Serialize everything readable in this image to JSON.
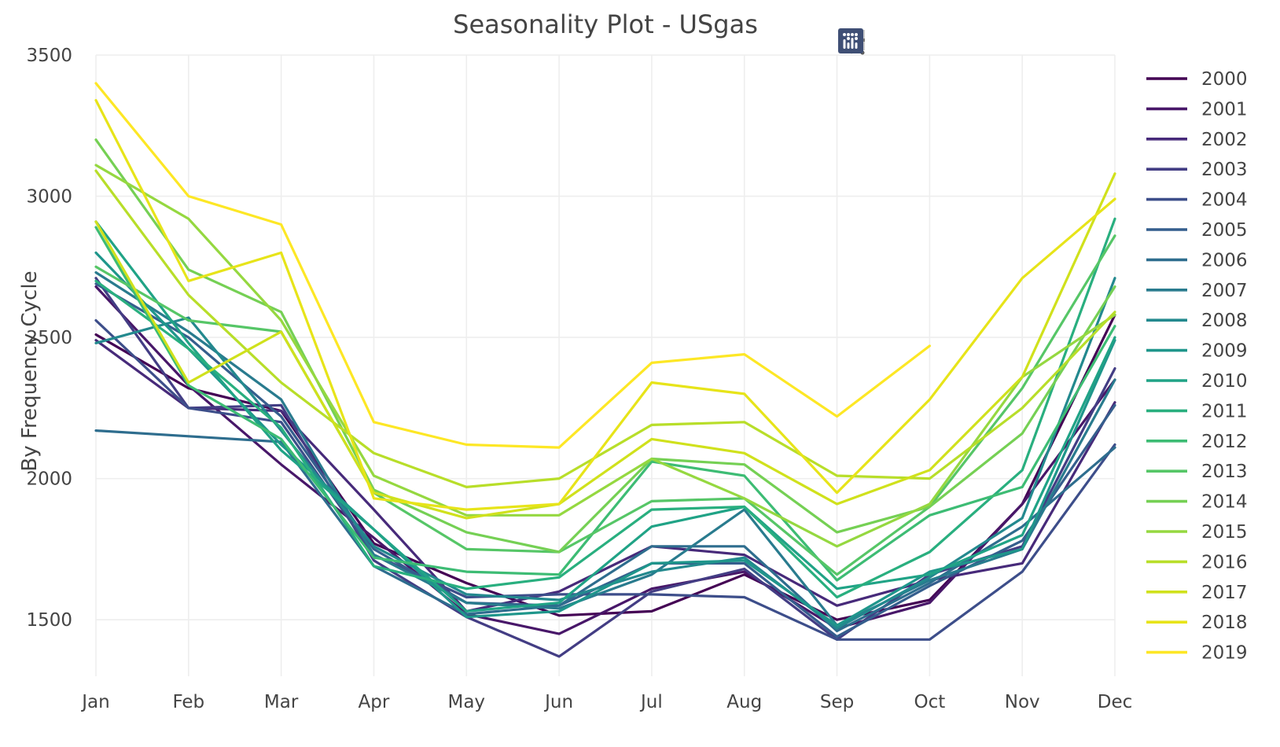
{
  "chart_data": {
    "type": "line",
    "title": "Seasonality Plot - USgas",
    "ylabel": "By Frequency Cycle",
    "xlabel": "",
    "categories": [
      "Jan",
      "Feb",
      "Mar",
      "Apr",
      "May",
      "Jun",
      "Jul",
      "Aug",
      "Sep",
      "Oct",
      "Nov",
      "Dec"
    ],
    "ylim": [
      1300,
      3500
    ],
    "yticks": [
      1500,
      2000,
      2500,
      3000,
      3500
    ],
    "grid": true,
    "legend_position": "right",
    "series": [
      {
        "name": "2000",
        "color": "#440154",
        "values": [
          2510,
          2320,
          2240,
          1770,
          1630,
          1515,
          1530,
          1660,
          1500,
          1570,
          1910,
          2580
        ]
      },
      {
        "name": "2001",
        "color": "#481769",
        "values": [
          2680,
          2330,
          2050,
          1790,
          1520,
          1450,
          1610,
          1670,
          1470,
          1560,
          1910,
          2350
        ]
      },
      {
        "name": "2002",
        "color": "#472a7a",
        "values": [
          2490,
          2250,
          2240,
          1890,
          1530,
          1600,
          1760,
          1730,
          1550,
          1640,
          1700,
          2270
        ]
      },
      {
        "name": "2003",
        "color": "#433d84",
        "values": [
          2710,
          2250,
          2260,
          1710,
          1510,
          1370,
          1600,
          1680,
          1430,
          1660,
          1760,
          2390
        ]
      },
      {
        "name": "2004",
        "color": "#3d4e8a",
        "values": [
          2560,
          2250,
          2200,
          1730,
          1580,
          1590,
          1590,
          1580,
          1430,
          1430,
          1670,
          2120
        ]
      },
      {
        "name": "2005",
        "color": "#355e8d",
        "values": [
          2690,
          2500,
          2220,
          1750,
          1560,
          1550,
          1700,
          1700,
          1440,
          1620,
          1780,
          2260
        ]
      },
      {
        "name": "2006",
        "color": "#2e6d8e",
        "values": [
          2170,
          2150,
          2130,
          1690,
          1520,
          1550,
          1760,
          1760,
          1460,
          1630,
          1830,
          2110
        ]
      },
      {
        "name": "2007",
        "color": "#297b8e",
        "values": [
          2730,
          2520,
          2280,
          1730,
          1560,
          1540,
          1660,
          1890,
          1480,
          1640,
          1750,
          2350
        ]
      },
      {
        "name": "2008",
        "color": "#23898e",
        "values": [
          2480,
          2570,
          2170,
          1760,
          1590,
          1570,
          1670,
          1720,
          1470,
          1650,
          1860,
          2710
        ]
      },
      {
        "name": "2009",
        "color": "#1f968b",
        "values": [
          2800,
          2460,
          2120,
          1820,
          1510,
          1530,
          1700,
          1710,
          1480,
          1670,
          1750,
          2490
        ]
      },
      {
        "name": "2010",
        "color": "#20a386",
        "values": [
          2910,
          2480,
          2100,
          1820,
          1530,
          1560,
          1830,
          1900,
          1610,
          1660,
          1800,
          2500
        ]
      },
      {
        "name": "2011",
        "color": "#29af7f",
        "values": [
          2700,
          2460,
          2180,
          1690,
          1610,
          1650,
          1890,
          1900,
          1580,
          1740,
          2030,
          2920
        ]
      },
      {
        "name": "2012",
        "color": "#3dbc74",
        "values": [
          2890,
          2330,
          2140,
          1720,
          1670,
          1660,
          2060,
          2010,
          1640,
          1870,
          1970,
          2540
        ]
      },
      {
        "name": "2013",
        "color": "#56c667",
        "values": [
          2750,
          2560,
          2520,
          1950,
          1750,
          1740,
          1920,
          1930,
          1660,
          1900,
          2320,
          2860
        ]
      },
      {
        "name": "2014",
        "color": "#75d054",
        "values": [
          3200,
          2740,
          2590,
          1960,
          1810,
          1740,
          2070,
          2050,
          1810,
          1900,
          2160,
          2680
        ]
      },
      {
        "name": "2015",
        "color": "#95d840",
        "values": [
          3110,
          2920,
          2560,
          2010,
          1870,
          1870,
          2070,
          1930,
          1760,
          1910,
          2360,
          2580
        ]
      },
      {
        "name": "2016",
        "color": "#b8de29",
        "values": [
          3090,
          2650,
          2340,
          2090,
          1970,
          2000,
          2190,
          2200,
          2010,
          2000,
          2250,
          2590
        ]
      },
      {
        "name": "2017",
        "color": "#d0e11c",
        "values": [
          2910,
          2340,
          2520,
          1950,
          1860,
          1910,
          2140,
          2090,
          1910,
          2030,
          2360,
          3080
        ]
      },
      {
        "name": "2018",
        "color": "#e7e419",
        "values": [
          3340,
          2700,
          2800,
          1930,
          1890,
          1910,
          2340,
          2300,
          1950,
          2280,
          2710,
          2990
        ]
      },
      {
        "name": "2019",
        "color": "#fde725",
        "values": [
          3400,
          3000,
          2900,
          2200,
          2120,
          2110,
          2410,
          2440,
          2220,
          2470,
          null,
          null
        ]
      }
    ]
  },
  "modebar": {
    "icons": [
      "camera-icon",
      "zoom-icon",
      "pan-icon",
      "zoom-in-icon",
      "zoom-out-icon",
      "autoscale-icon",
      "reset-axes-icon",
      "hover-closest-icon",
      "hover-compare-icon",
      "plotly-logo-icon"
    ]
  }
}
